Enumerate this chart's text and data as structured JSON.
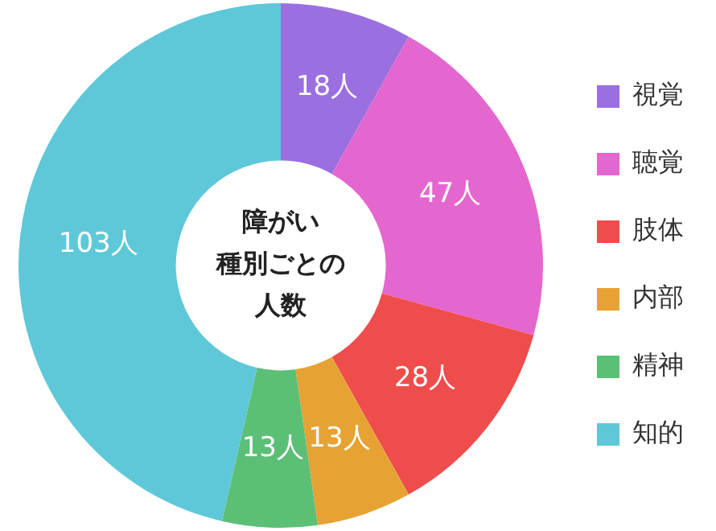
{
  "chart_data": {
    "type": "donut",
    "title": "障がい種別ごとの人数",
    "categories": [
      "視覚",
      "聴覚",
      "肢体",
      "内部",
      "精神",
      "知的"
    ],
    "values": [
      18,
      47,
      28,
      13,
      13,
      103
    ],
    "colors": [
      "#9b6fe0",
      "#e466cf",
      "#ef4c4c",
      "#e6a334",
      "#5cbf76",
      "#5ec8d8"
    ],
    "value_labels": [
      "18人",
      "47人",
      "28人",
      "13人",
      "13人",
      "103人"
    ],
    "legend": "right"
  }
}
